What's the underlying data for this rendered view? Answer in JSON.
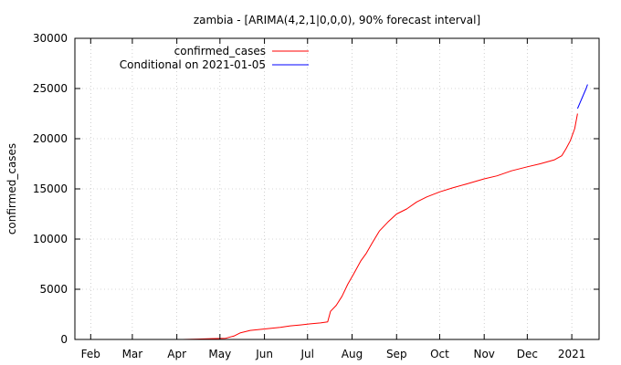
{
  "chart_data": {
    "type": "line",
    "title": "zambia -  [ARIMA(4,2,1|0,0,0), 90% forecast interval]",
    "xlabel": "",
    "ylabel": "confirmed_cases",
    "ylim": [
      0,
      30000
    ],
    "xlim": [
      "2020-01-21",
      "2021-01-20"
    ],
    "yticks": [
      0,
      5000,
      10000,
      15000,
      20000,
      25000,
      30000
    ],
    "xticks": [
      {
        "label": "Feb",
        "date": "2020-02-01"
      },
      {
        "label": "Mar",
        "date": "2020-03-01"
      },
      {
        "label": "Apr",
        "date": "2020-04-01"
      },
      {
        "label": "May",
        "date": "2020-05-01"
      },
      {
        "label": "Jun",
        "date": "2020-06-01"
      },
      {
        "label": "Jul",
        "date": "2020-07-01"
      },
      {
        "label": "Aug",
        "date": "2020-08-01"
      },
      {
        "label": "Sep",
        "date": "2020-09-01"
      },
      {
        "label": "Oct",
        "date": "2020-10-01"
      },
      {
        "label": "Nov",
        "date": "2020-11-01"
      },
      {
        "label": "Dec",
        "date": "2020-12-01"
      },
      {
        "label": "2021",
        "date": "2021-01-01"
      }
    ],
    "grid": true,
    "legend": "top-left",
    "series": [
      {
        "name": "confirmed_cases",
        "color": "#ff0000",
        "points": [
          [
            "2020-04-05",
            0
          ],
          [
            "2020-04-15",
            40
          ],
          [
            "2020-04-25",
            80
          ],
          [
            "2020-05-05",
            120
          ],
          [
            "2020-05-11",
            350
          ],
          [
            "2020-05-15",
            650
          ],
          [
            "2020-05-22",
            900
          ],
          [
            "2020-05-29",
            1000
          ],
          [
            "2020-06-05",
            1100
          ],
          [
            "2020-06-12",
            1200
          ],
          [
            "2020-06-19",
            1350
          ],
          [
            "2020-06-26",
            1450
          ],
          [
            "2020-07-03",
            1550
          ],
          [
            "2020-07-10",
            1650
          ],
          [
            "2020-07-15",
            1750
          ],
          [
            "2020-07-17",
            2800
          ],
          [
            "2020-07-21",
            3400
          ],
          [
            "2020-07-25",
            4300
          ],
          [
            "2020-07-29",
            5500
          ],
          [
            "2020-08-02",
            6500
          ],
          [
            "2020-08-07",
            7800
          ],
          [
            "2020-08-11",
            8600
          ],
          [
            "2020-08-15",
            9600
          ],
          [
            "2020-08-20",
            10800
          ],
          [
            "2020-08-26",
            11700
          ],
          [
            "2020-09-01",
            12500
          ],
          [
            "2020-09-08",
            13000
          ],
          [
            "2020-09-15",
            13700
          ],
          [
            "2020-09-22",
            14200
          ],
          [
            "2020-10-01",
            14700
          ],
          [
            "2020-10-10",
            15100
          ],
          [
            "2020-10-20",
            15500
          ],
          [
            "2020-11-01",
            16000
          ],
          [
            "2020-11-10",
            16300
          ],
          [
            "2020-11-20",
            16800
          ],
          [
            "2020-12-01",
            17200
          ],
          [
            "2020-12-10",
            17500
          ],
          [
            "2020-12-20",
            17900
          ],
          [
            "2020-12-25",
            18300
          ],
          [
            "2020-12-28",
            19000
          ],
          [
            "2020-12-31",
            19800
          ],
          [
            "2021-01-03",
            21000
          ],
          [
            "2021-01-05",
            22500
          ]
        ]
      },
      {
        "name": "Conditional on 2021-01-05",
        "color": "#0000ff",
        "points": [
          [
            "2021-01-05",
            23000
          ],
          [
            "2021-01-08",
            24000
          ],
          [
            "2021-01-11",
            25000
          ],
          [
            "2021-01-12",
            25400
          ]
        ]
      }
    ]
  }
}
